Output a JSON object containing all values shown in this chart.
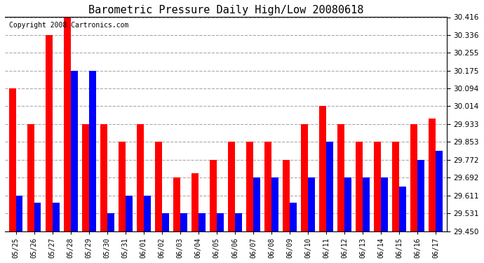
{
  "title": "Barometric Pressure Daily High/Low 20080618",
  "copyright": "Copyright 2008 Cartronics.com",
  "categories": [
    "05/25",
    "05/26",
    "05/27",
    "05/28",
    "05/29",
    "05/30",
    "05/31",
    "06/01",
    "06/02",
    "06/03",
    "06/04",
    "06/05",
    "06/06",
    "06/07",
    "06/08",
    "06/09",
    "06/10",
    "06/11",
    "06/12",
    "06/13",
    "06/14",
    "06/15",
    "06/16",
    "06/17"
  ],
  "highs": [
    30.094,
    29.933,
    30.336,
    30.416,
    29.933,
    29.933,
    29.853,
    29.933,
    29.853,
    29.692,
    29.712,
    29.772,
    29.853,
    29.853,
    29.853,
    29.772,
    29.933,
    30.014,
    29.933,
    29.853,
    29.853,
    29.853,
    29.933,
    29.96
  ],
  "lows": [
    29.611,
    29.58,
    29.58,
    30.175,
    30.175,
    29.531,
    29.611,
    29.611,
    29.531,
    29.531,
    29.531,
    29.531,
    29.531,
    29.692,
    29.692,
    29.58,
    29.692,
    29.853,
    29.692,
    29.692,
    29.692,
    29.651,
    29.772,
    29.812
  ],
  "high_color": "#ff0000",
  "low_color": "#0000ff",
  "background_color": "#ffffff",
  "grid_color": "#aaaaaa",
  "ylim_min": 29.45,
  "ylim_max": 30.416,
  "yticks": [
    29.45,
    29.531,
    29.611,
    29.692,
    29.772,
    29.853,
    29.933,
    30.014,
    30.094,
    30.175,
    30.255,
    30.336,
    30.416
  ],
  "bar_width": 0.38,
  "fig_width": 6.9,
  "fig_height": 3.75,
  "dpi": 100
}
